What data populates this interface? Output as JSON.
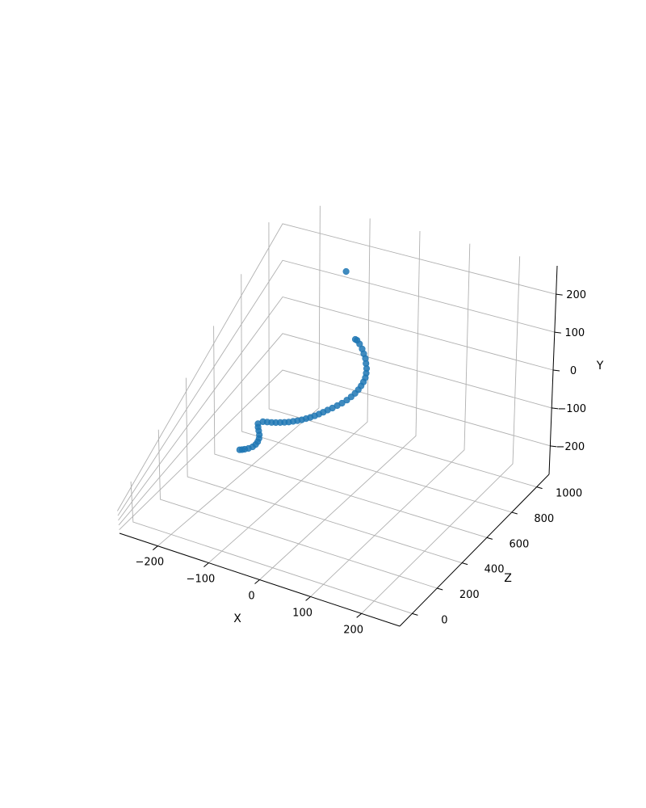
{
  "chart_data": {
    "type": "scatter",
    "dimensions": 3,
    "xlabel": "X",
    "ylabel": "Y",
    "zlabel": "Z",
    "x_ticks": [
      "−200",
      "−100",
      "0",
      "100",
      "200"
    ],
    "y_ticks": [
      "−200",
      "−100",
      "0",
      "100",
      "200"
    ],
    "z_ticks": [
      "0",
      "200",
      "400",
      "600",
      "800",
      "1000"
    ],
    "x_tick_values": [
      -200,
      -100,
      0,
      100,
      200
    ],
    "y_tick_values": [
      -200,
      -100,
      0,
      100,
      200
    ],
    "z_tick_values": [
      0,
      200,
      400,
      600,
      800,
      1000
    ],
    "xlim": [
      -275,
      275
    ],
    "ylim": [
      -275,
      275
    ],
    "zlim": [
      -100,
      1100
    ],
    "grid": true,
    "marker_color": "#1f77b4",
    "pane_colors": [
      "#f2f2f2",
      "#ececec",
      "#f5f5f5"
    ],
    "points": [
      [
        -120,
        190,
        1000
      ],
      [
        -100,
        0,
        1000
      ],
      [
        -95,
        2,
        995
      ],
      [
        -88,
        -2,
        988
      ],
      [
        -80,
        -8,
        978
      ],
      [
        -74,
        -14,
        968
      ],
      [
        -68,
        -20,
        958
      ],
      [
        -64,
        -28,
        948
      ],
      [
        -60,
        -36,
        938
      ],
      [
        -58,
        -44,
        928
      ],
      [
        -57,
        -52,
        918
      ],
      [
        -58,
        -60,
        908
      ],
      [
        -60,
        -68,
        898
      ],
      [
        -63,
        -76,
        888
      ],
      [
        -67,
        -84,
        878
      ],
      [
        -72,
        -92,
        868
      ],
      [
        -78,
        -100,
        858
      ],
      [
        -85,
        -108,
        848
      ],
      [
        -92,
        -114,
        838
      ],
      [
        -99,
        -120,
        828
      ],
      [
        -106,
        -125,
        818
      ],
      [
        -112,
        -130,
        808
      ],
      [
        -118,
        -134,
        798
      ],
      [
        -124,
        -138,
        788
      ],
      [
        -130,
        -141,
        778
      ],
      [
        -136,
        -143,
        768
      ],
      [
        -142,
        -145,
        758
      ],
      [
        -148,
        -146,
        748
      ],
      [
        -154,
        -146,
        738
      ],
      [
        -160,
        -146,
        728
      ],
      [
        -166,
        -145,
        718
      ],
      [
        -172,
        -143,
        708
      ],
      [
        -178,
        -141,
        698
      ],
      [
        -184,
        -138,
        688
      ],
      [
        -190,
        -134,
        678
      ],
      [
        -196,
        -130,
        668
      ],
      [
        -201,
        -130,
        650
      ],
      [
        -198,
        -136,
        640
      ],
      [
        -194,
        -142,
        630
      ],
      [
        -190,
        -150,
        620
      ],
      [
        -188,
        -158,
        610
      ],
      [
        -188,
        -166,
        600
      ],
      [
        -190,
        -174,
        592
      ],
      [
        -194,
        -182,
        584
      ],
      [
        -200,
        -188,
        576
      ],
      [
        -206,
        -192,
        570
      ],
      [
        -210,
        -194,
        566
      ],
      [
        -214,
        -195,
        562
      ]
    ]
  }
}
